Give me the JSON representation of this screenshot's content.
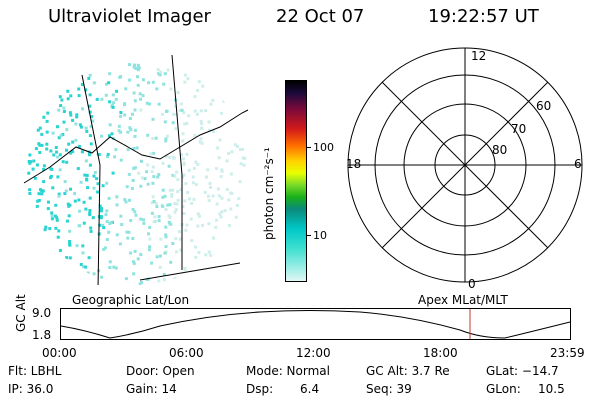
{
  "header": {
    "title": "Ultraviolet Imager",
    "date": "22 Oct 07",
    "time": "19:22:57 UT"
  },
  "colorbar": {
    "unit_label": "photon cm⁻²s⁻¹",
    "ticks": [
      "100",
      "10"
    ]
  },
  "polar_plot": {
    "mlt_labels": {
      "top": "12",
      "left": "18",
      "right": "6",
      "bottom": "0"
    },
    "lat_labels": [
      "60",
      "70",
      "80"
    ]
  },
  "panel_labels": {
    "left": "Geographic Lat/Lon",
    "right": "Apex MLat/MLT"
  },
  "altitude_plot": {
    "ylabel": "GC Alt",
    "yticks": [
      "9.0",
      "1.8"
    ],
    "xticks": [
      "00:00",
      "06:00",
      "12:00",
      "18:00",
      "23:59"
    ]
  },
  "status": {
    "flt": "Flt: LBHL",
    "door": "Door: Open",
    "mode": "Mode: Normal",
    "gc_alt": "GC Alt: 3.7 Re",
    "glat": "GLat: −14.7",
    "ip": "IP: 36.0",
    "gain": "Gain: 14",
    "dsp": "Dsp:",
    "dsp_val": "6.4",
    "seq": "Seq: 39",
    "glon": "GLon:",
    "glon_val": "10.5"
  },
  "colors": {
    "image_dots": "#40e0d0",
    "marker": "#c0392b"
  }
}
